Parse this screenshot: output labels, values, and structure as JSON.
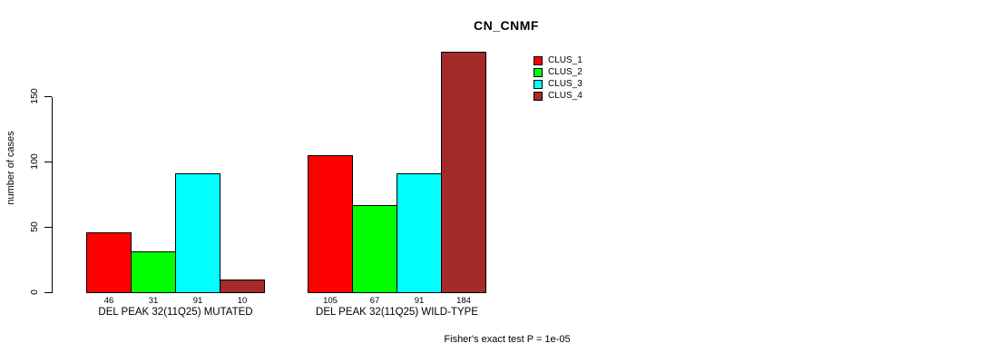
{
  "title": "CN_CNMF",
  "annotation": "Fisher's exact test P = 1e-05",
  "chart_data": {
    "type": "bar",
    "title": "CN_CNMF",
    "xlabel": "",
    "ylabel": "number of cases",
    "yticks": [
      0,
      50,
      100,
      150
    ],
    "ylim": [
      0,
      184
    ],
    "grid": false,
    "legend_position": "top-right",
    "categories": [
      "DEL PEAK 32(11Q25) MUTATED",
      "DEL PEAK 32(11Q25) WILD-TYPE"
    ],
    "series": [
      {
        "name": "CLUS_1",
        "color": "#FF0000",
        "values": [
          46,
          105
        ]
      },
      {
        "name": "CLUS_2",
        "color": "#00FF00",
        "values": [
          31,
          67
        ]
      },
      {
        "name": "CLUS_3",
        "color": "#00FFFF",
        "values": [
          91,
          91
        ]
      },
      {
        "name": "CLUS_4",
        "color": "#A52A2A",
        "values": [
          10,
          184
        ]
      }
    ],
    "bar_value_labels": [
      [
        46,
        31,
        91,
        10
      ],
      [
        105,
        67,
        91,
        184
      ]
    ],
    "annotation": "Fisher's exact test P = 1e-05",
    "colors": {
      "background": "#FFFFFF",
      "axis": "#000000",
      "text": "#000000",
      "bar_border": "#000000"
    }
  }
}
